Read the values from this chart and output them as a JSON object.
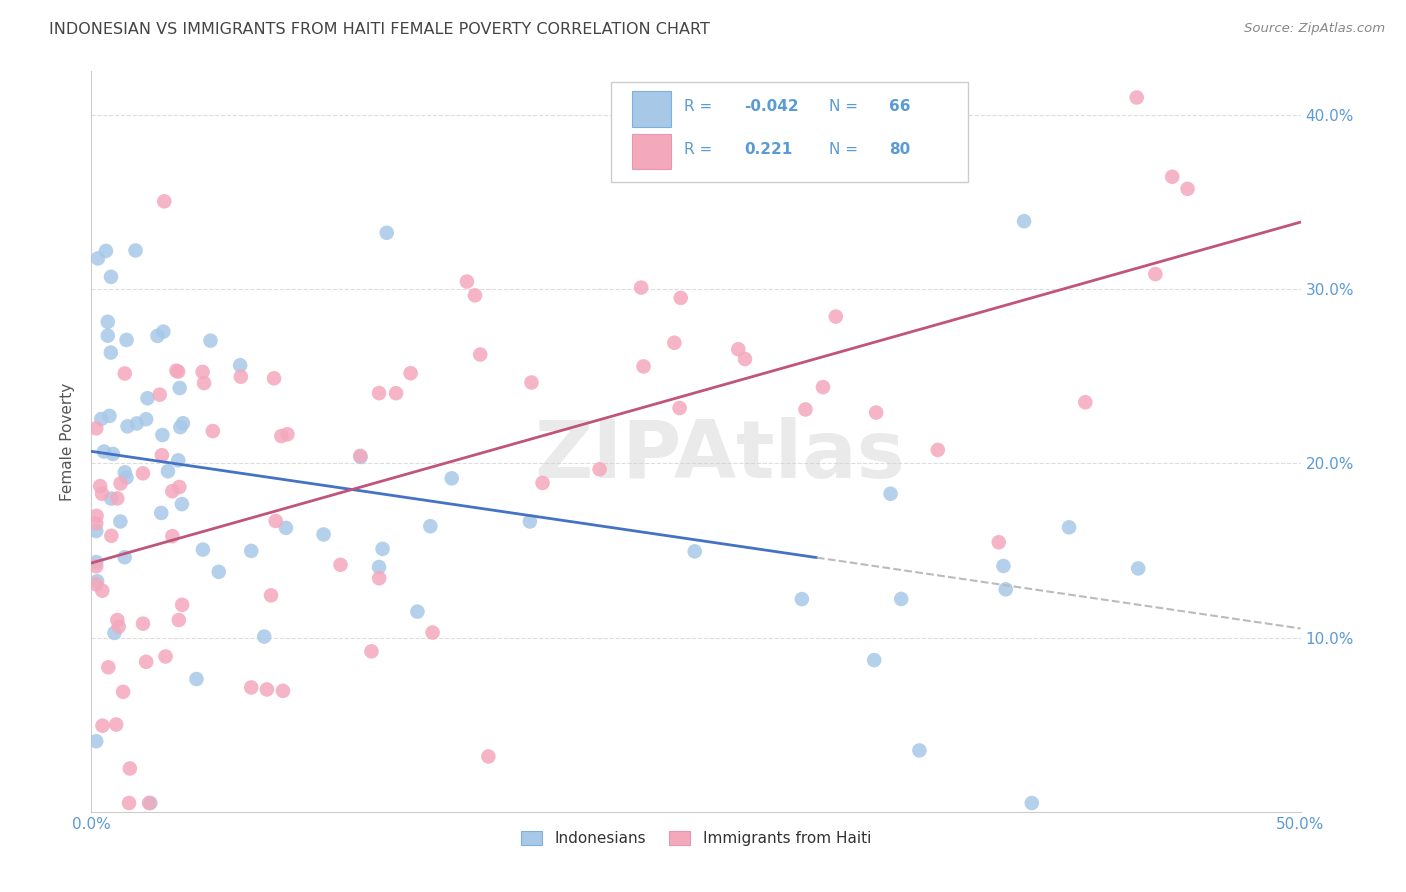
{
  "title": "INDONESIAN VS IMMIGRANTS FROM HAITI FEMALE POVERTY CORRELATION CHART",
  "source": "Source: ZipAtlas.com",
  "xlim": [
    0.0,
    0.5
  ],
  "ylim": [
    0.0,
    0.425
  ],
  "ylabel": "Female Poverty",
  "legend_labels": [
    "Indonesians",
    "Immigrants from Haiti"
  ],
  "R_indonesian": -0.042,
  "N_indonesian": 66,
  "R_haiti": 0.221,
  "N_haiti": 80,
  "color_indonesian": "#A8C8E8",
  "color_haiti": "#F4A8BC",
  "line_color_indonesian": "#4472C4",
  "line_color_haiti": "#C0547A",
  "dashed_line_color": "#BBBBBB",
  "background_color": "#FFFFFF",
  "grid_color": "#DDDDDD",
  "title_color": "#444444",
  "source_color": "#888888",
  "tick_color": "#5B9BD5",
  "watermark": "ZIPAtlas",
  "watermark_color": "#CCCCCC",
  "legend_text_color": "#5B9BD5",
  "ind_seed": 42,
  "hai_seed": 99
}
